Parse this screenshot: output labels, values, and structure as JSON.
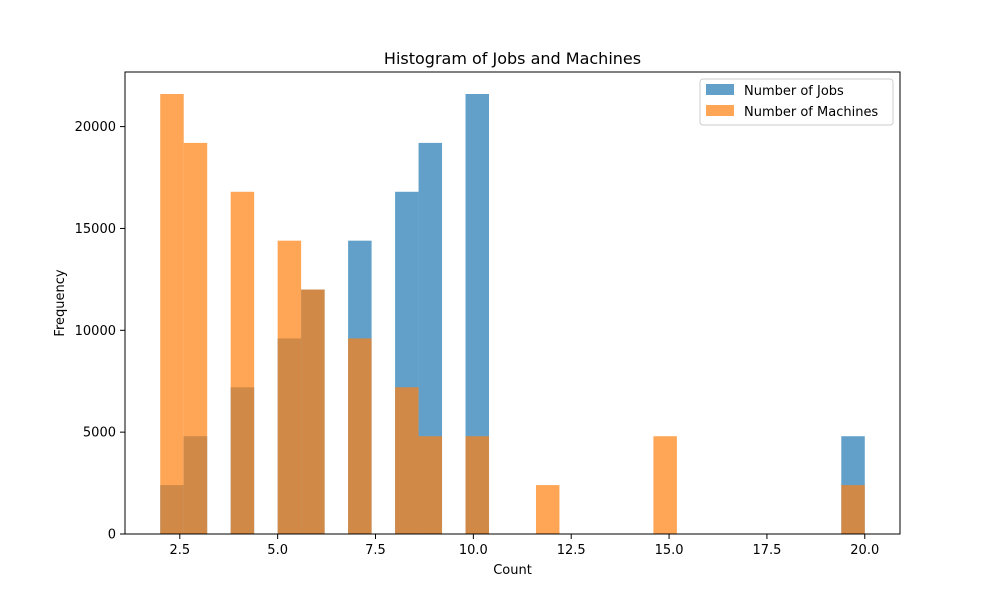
{
  "chart_data": {
    "type": "bar",
    "title": "Histogram of Jobs and Machines",
    "xlabel": "Count",
    "ylabel": "Frequency",
    "xlim": [
      1.1,
      20.9
    ],
    "ylim": [
      0,
      22680
    ],
    "x_ticks": [
      2.5,
      5.0,
      7.5,
      10.0,
      12.5,
      15.0,
      17.5,
      20.0
    ],
    "x_tick_labels": [
      "2.5",
      "5.0",
      "7.5",
      "10.0",
      "12.5",
      "15.0",
      "17.5",
      "20.0"
    ],
    "y_ticks": [
      0,
      5000,
      10000,
      15000,
      20000
    ],
    "y_tick_labels": [
      "0",
      "5000",
      "10000",
      "15000",
      "20000"
    ],
    "grid": false,
    "legend_position": "top-right",
    "bins_edges": [
      2.0,
      2.6,
      3.2,
      3.8,
      4.4,
      5.0,
      5.6,
      6.2,
      6.8,
      7.4,
      8.0,
      8.6,
      9.2,
      9.8,
      10.4,
      11.0,
      11.6,
      12.2,
      12.8,
      13.4,
      14.0,
      14.6,
      15.2,
      15.8,
      16.4,
      17.0,
      17.6,
      18.2,
      18.8,
      19.4,
      20.0
    ],
    "series": [
      {
        "name": "Number of Jobs",
        "color": "#1f77b4",
        "alpha": 0.7,
        "values": [
          2400,
          4800,
          0,
          7200,
          0,
          9600,
          12000,
          0,
          14400,
          0,
          16800,
          19200,
          0,
          21600,
          0,
          0,
          0,
          0,
          0,
          0,
          0,
          0,
          0,
          0,
          0,
          0,
          0,
          0,
          0,
          4800
        ]
      },
      {
        "name": "Number of Machines",
        "color": "#ff7f0e",
        "alpha": 0.7,
        "values": [
          21600,
          19200,
          0,
          16800,
          0,
          14400,
          12000,
          0,
          9600,
          0,
          7200,
          4800,
          0,
          4800,
          0,
          0,
          2400,
          0,
          0,
          0,
          0,
          4800,
          0,
          0,
          0,
          0,
          0,
          0,
          0,
          2400
        ]
      }
    ]
  }
}
